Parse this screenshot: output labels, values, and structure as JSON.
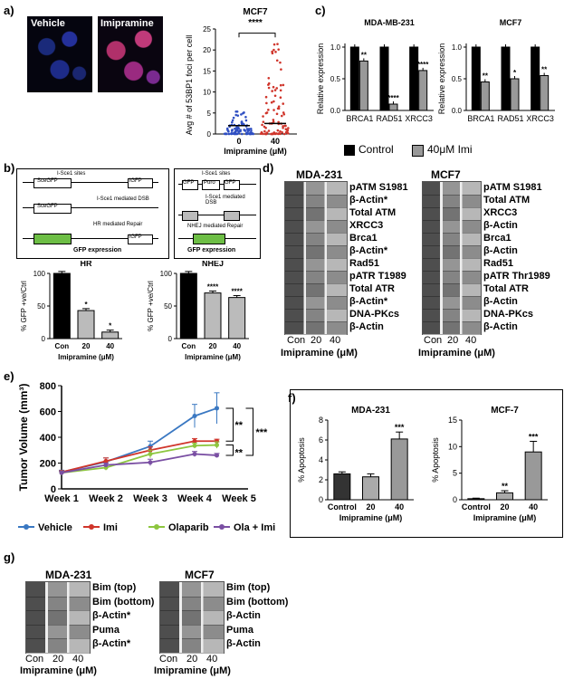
{
  "panel_labels": [
    "a)",
    "b)",
    "c)",
    "d)",
    "e)",
    "f)",
    "g)"
  ],
  "a": {
    "img_labels": [
      "Vehicle",
      "Imipramine"
    ],
    "chart_data": {
      "type": "scatter",
      "title": "MCF7",
      "ylabel": "Avg # of 53BP1 foci per cell",
      "xlabel": "Imipramine (μM)",
      "categories": [
        "0",
        "40"
      ],
      "ylim": [
        0,
        25
      ],
      "yticks": [
        "0",
        "5",
        "10",
        "15",
        "20",
        "25"
      ],
      "medians": [
        2,
        2.5
      ],
      "spread_max": [
        6,
        22
      ],
      "significance": "****"
    }
  },
  "b": {
    "hr_diagram": {
      "sites": "I-Sce1 sites",
      "gene1": "SceGFP",
      "gene2": "iGFP",
      "dsb": "I-Sce1 mediated DSB",
      "repair": "HR mediated Repair",
      "result": "GFP expression"
    },
    "nhej_diagram": {
      "sites": "I-Sce1 sites",
      "gene1": "GFP",
      "gene2": "Puro",
      "gene3": "GFP",
      "dsb": "I-Sce1 mediated DSB",
      "repair": "NHEJ mediated Repair",
      "result": "GFP expression"
    },
    "charts": [
      {
        "type": "bar",
        "title": "HR",
        "ylabel": "% GFP +ve/Ctrl",
        "xlabel": "Imipramine (μM)",
        "categories": [
          "Con",
          "20",
          "40"
        ],
        "values": [
          100,
          43,
          10
        ],
        "ylim": [
          0,
          100
        ],
        "yticks": [
          "0",
          "50",
          "100"
        ],
        "significance": [
          "",
          "*",
          "*"
        ]
      },
      {
        "type": "bar",
        "title": "NHEJ",
        "ylabel": "% GFP +ve/Ctrl",
        "xlabel": "Imipramine (μM)",
        "categories": [
          "Con",
          "20",
          "40"
        ],
        "values": [
          100,
          70,
          63
        ],
        "ylim": [
          0,
          100
        ],
        "yticks": [
          "0",
          "50",
          "100"
        ],
        "significance": [
          "",
          "****",
          "****"
        ]
      }
    ]
  },
  "c": {
    "legend": [
      "Control",
      "40μM Imi"
    ],
    "charts": [
      {
        "type": "bar",
        "title": "MDA-MB-231",
        "ylabel": "Relative expression",
        "categories": [
          "BRCA1",
          "RAD51",
          "XRCC3"
        ],
        "series": [
          {
            "name": "Control",
            "values": [
              1.0,
              1.0,
              1.0
            ]
          },
          {
            "name": "40μM Imi",
            "values": [
              0.78,
              0.1,
              0.63
            ]
          }
        ],
        "ylim": [
          0,
          1.0
        ],
        "yticks": [
          "0.0",
          "0.5",
          "1.0"
        ],
        "significance": [
          "**",
          "****",
          "****"
        ]
      },
      {
        "type": "bar",
        "title": "MCF7",
        "ylabel": "Relative expression",
        "categories": [
          "BRCA1",
          "RAD51",
          "XRCC3"
        ],
        "series": [
          {
            "name": "Control",
            "values": [
              1.0,
              1.0,
              1.0
            ]
          },
          {
            "name": "40μM Imi",
            "values": [
              0.45,
              0.5,
              0.55
            ]
          }
        ],
        "ylim": [
          0,
          1.0
        ],
        "yticks": [
          "0.0",
          "0.5",
          "1.0"
        ],
        "significance": [
          "**",
          "*",
          "**"
        ]
      }
    ]
  },
  "d": {
    "left_title": "MDA-231",
    "right_title": "MCF7",
    "left_labels": [
      "pATM S1981",
      "β-Actin*",
      "Total ATM",
      "XRCC3",
      "Brca1",
      "β-Actin*",
      "Rad51",
      "pATR T1989",
      "Total ATR",
      "β-Actin*",
      "DNA-PKcs",
      "β-Actin"
    ],
    "right_labels": [
      "pATM S1981",
      "Total ATM",
      "XRCC3",
      "β-Actin",
      "Brca1",
      "β-Actin",
      "Rad51",
      "pATR Thr1989",
      "Total ATR",
      "β-Actin",
      "DNA-PKcs",
      "β-Actin"
    ],
    "lanes": [
      "Con",
      "20",
      "40"
    ],
    "xlabel": "Imipramine (μM)"
  },
  "e": {
    "chart_data": {
      "type": "line",
      "ylabel": "Tumor Volume (mm³)",
      "x": [
        "Week 1",
        "Week 2",
        "Week 3",
        "Week 4",
        "Week 5"
      ],
      "ylim": [
        0,
        800
      ],
      "yticks": [
        "0",
        "200",
        "400",
        "600",
        "800"
      ],
      "series": [
        {
          "name": "Vehicle",
          "color": "#3a78c2",
          "x": [
            1,
            2,
            3,
            4,
            4.5
          ],
          "values": [
            130,
            210,
            330,
            565,
            625
          ],
          "err": [
            15,
            30,
            40,
            90,
            120
          ]
        },
        {
          "name": "Imi",
          "color": "#d0352b",
          "x": [
            1,
            2,
            3,
            4,
            4.5
          ],
          "values": [
            130,
            215,
            300,
            370,
            370
          ],
          "err": [
            10,
            25,
            25,
            20,
            15
          ]
        },
        {
          "name": "Olaparib",
          "color": "#8dc63f",
          "x": [
            1,
            2,
            3,
            4,
            4.5
          ],
          "values": [
            125,
            165,
            270,
            335,
            340
          ],
          "err": [
            10,
            20,
            30,
            20,
            25
          ]
        },
        {
          "name": "Ola + Imi",
          "color": "#7a4fa3",
          "x": [
            1,
            2,
            3,
            4,
            4.5
          ],
          "values": [
            125,
            185,
            205,
            270,
            260
          ],
          "err": [
            10,
            15,
            25,
            20,
            15
          ]
        }
      ],
      "brackets": [
        "**",
        "***",
        "**"
      ]
    }
  },
  "f": {
    "charts": [
      {
        "type": "bar",
        "title": "MDA-231",
        "ylabel": "% Apoptosis",
        "xlabel": "Imipramine (μM)",
        "categories": [
          "Control",
          "20",
          "40"
        ],
        "values": [
          2.6,
          2.3,
          6.1
        ],
        "err": [
          0.2,
          0.3,
          0.7
        ],
        "ylim": [
          0,
          8
        ],
        "yticks": [
          "0",
          "2",
          "4",
          "6",
          "8"
        ],
        "significance": [
          "",
          "",
          "***"
        ]
      },
      {
        "type": "bar",
        "title": "MCF-7",
        "ylabel": "% Apoptosis",
        "xlabel": "Imipramine (μM)",
        "categories": [
          "Control",
          "20",
          "40"
        ],
        "values": [
          0.2,
          1.3,
          9.0
        ],
        "err": [
          0.1,
          0.4,
          2.0
        ],
        "ylim": [
          0,
          15
        ],
        "yticks": [
          "0",
          "5",
          "10",
          "15"
        ],
        "significance": [
          "",
          "**",
          "***"
        ]
      }
    ]
  },
  "g": {
    "left_title": "MDA-231",
    "right_title": "MCF7",
    "left_labels": [
      "Bim (top)",
      "Bim (bottom)",
      "β-Actin*",
      "Puma",
      "β-Actin*"
    ],
    "right_labels": [
      "Bim (top)",
      "Bim (bottom)",
      "β-Actin",
      "Puma",
      "β-Actin"
    ],
    "lanes": [
      "Con",
      "20",
      "40"
    ],
    "xlabel": "Imipramine (μM)"
  }
}
